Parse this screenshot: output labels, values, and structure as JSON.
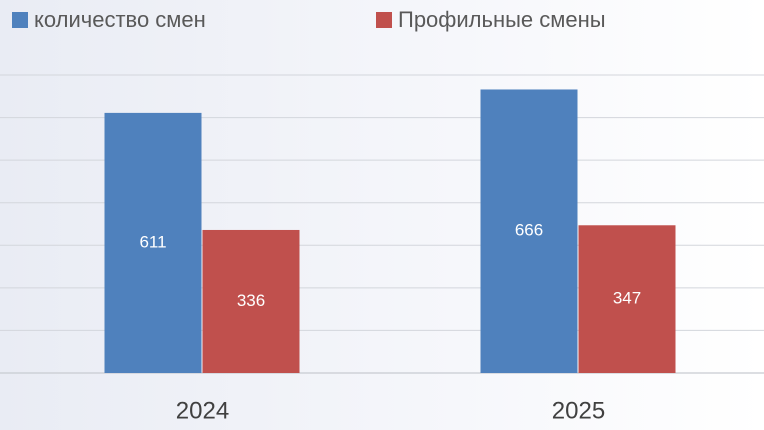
{
  "chart_data": {
    "type": "bar",
    "categories": [
      "2024",
      "2025"
    ],
    "series": [
      {
        "name": "количество смен",
        "color": "#4f81bd",
        "values": [
          611,
          666
        ]
      },
      {
        "name": "Профильные смены",
        "color": "#c0504d",
        "values": [
          336,
          347
        ]
      }
    ],
    "ylim": [
      0,
      700
    ],
    "yticks": [
      0,
      100,
      200,
      300,
      400,
      500,
      600,
      700
    ],
    "grid": true,
    "legend": "top"
  }
}
